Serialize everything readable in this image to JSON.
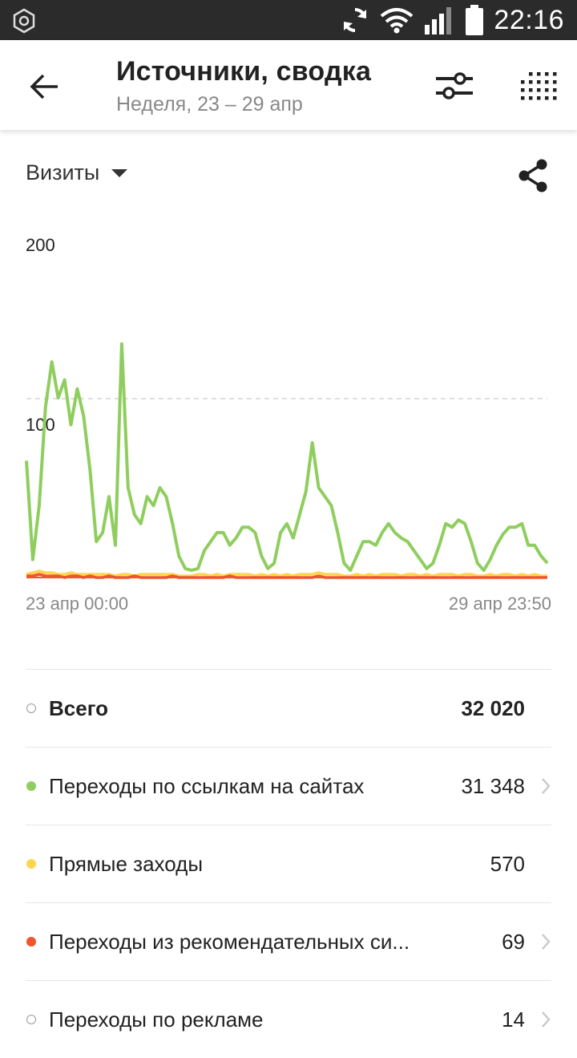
{
  "status_bar": {
    "time": "22:16"
  },
  "header": {
    "title": "Источники, сводка",
    "subtitle": "Неделя, 23 – 29 апр"
  },
  "metric": {
    "label": "Визиты"
  },
  "chart_data": {
    "type": "line",
    "y_ticks": [
      "200",
      "100"
    ],
    "ylim": [
      0,
      200
    ],
    "x_start_label": "23 апр 00:00",
    "x_end_label": "29 апр 23:50",
    "gridline_value": 100,
    "series": [
      {
        "name": "Переходы по ссылкам на сайтах",
        "color": "#8fce5e",
        "values": [
          65,
          10,
          40,
          95,
          120,
          100,
          110,
          85,
          105,
          90,
          60,
          20,
          25,
          45,
          18,
          130,
          50,
          35,
          30,
          45,
          40,
          50,
          45,
          30,
          12,
          5,
          4,
          5,
          15,
          20,
          25,
          25,
          18,
          22,
          28,
          28,
          25,
          12,
          5,
          8,
          25,
          30,
          22,
          35,
          48,
          75,
          50,
          45,
          40,
          25,
          8,
          4,
          12,
          20,
          20,
          18,
          25,
          30,
          25,
          22,
          20,
          15,
          10,
          5,
          8,
          18,
          30,
          28,
          32,
          30,
          20,
          8,
          4,
          10,
          18,
          24,
          28,
          28,
          30,
          18,
          18,
          12,
          8
        ]
      },
      {
        "name": "Прямые заходы",
        "color": "#ffd54f",
        "values": [
          2,
          3,
          4,
          3,
          3,
          2,
          2,
          3,
          2,
          2,
          2,
          2,
          2,
          2,
          1,
          2,
          2,
          1,
          2,
          2,
          2,
          2,
          2,
          2,
          1,
          1,
          1,
          2,
          2,
          1,
          2,
          1,
          2,
          2,
          2,
          2,
          1,
          2,
          1,
          2,
          1,
          2,
          1,
          2,
          2,
          2,
          3,
          2,
          2,
          2,
          1,
          1,
          2,
          1,
          2,
          1,
          2,
          2,
          2,
          1,
          2,
          2,
          1,
          2,
          1,
          2,
          2,
          2,
          1,
          2,
          2,
          1,
          1,
          2,
          1,
          2,
          2,
          1,
          2,
          1,
          2,
          1,
          1
        ]
      },
      {
        "name": "Переходы из рекомендательных систем",
        "color": "#f0552d",
        "values": [
          1,
          1,
          2,
          1,
          1,
          1,
          0,
          1,
          1,
          0,
          1,
          0,
          0,
          1,
          0,
          0,
          0,
          1,
          0,
          0,
          0,
          0,
          0,
          1,
          0,
          0,
          0,
          0,
          0,
          0,
          0,
          0,
          1,
          0,
          0,
          0,
          0,
          0,
          0,
          0,
          0,
          0,
          0,
          0,
          0,
          0,
          1,
          0,
          0,
          0,
          0,
          0,
          0,
          0,
          0,
          0,
          0,
          0,
          0,
          0,
          0,
          0,
          0,
          0,
          0,
          0,
          0,
          0,
          0,
          0,
          0,
          0,
          0,
          0,
          0,
          0,
          0,
          0,
          0,
          0,
          0,
          0,
          0
        ]
      }
    ]
  },
  "summary": {
    "rows": [
      {
        "label": "Всего",
        "value": "32 020",
        "dot_color": "",
        "bold": true,
        "chevron": false
      },
      {
        "label": "Переходы по ссылкам на сайтах",
        "value": "31 348",
        "dot_color": "#8fce5e",
        "bold": false,
        "chevron": true
      },
      {
        "label": "Прямые заходы",
        "value": "570",
        "dot_color": "#ffd54f",
        "bold": false,
        "chevron": false
      },
      {
        "label": "Переходы из рекомендательных си...",
        "value": "69",
        "dot_color": "#f0552d",
        "bold": false,
        "chevron": true
      },
      {
        "label": "Переходы по рекламе",
        "value": "14",
        "dot_color": "",
        "bold": false,
        "chevron": true
      }
    ]
  },
  "icons": {
    "status_left": "app-notification-icon",
    "sync": "sync-icon",
    "wifi": "wifi-icon",
    "signal": "signal-icon",
    "battery": "battery-icon",
    "back": "arrow-back-icon",
    "filter": "filter-sliders-icon",
    "grid": "grid-dots-icon",
    "dropdown": "triangle-down-icon",
    "share": "share-icon",
    "chevron": "chevron-right-icon"
  }
}
